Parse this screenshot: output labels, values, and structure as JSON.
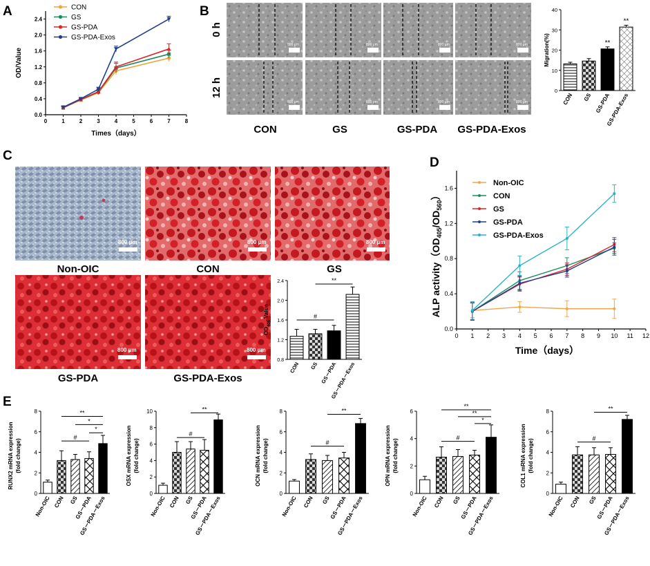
{
  "panel_letters": [
    "A",
    "B",
    "C",
    "D",
    "E"
  ],
  "colors": {
    "con_orange": "#f3a43a",
    "gs_green": "#1a8a5c",
    "gspda_red": "#d8262a",
    "exos_blue": "#1f3e8c",
    "d_noic": "#f0a64a",
    "d_con": "#1f8a5a",
    "d_gs": "#d8262a",
    "d_gspda": "#1f3e8c",
    "d_exos": "#27b3c6",
    "stain_red": "#cc1a24",
    "micro_gray": "#9a9a9a"
  },
  "panelB": {
    "time_labels": [
      "0 h",
      "12 h"
    ],
    "group_labels": [
      "CON",
      "GS",
      "GS-PDA",
      "GS-PDA-Exos"
    ],
    "scale_bar": "800 μm"
  },
  "panelC": {
    "image_labels": [
      "Non-OIC",
      "CON",
      "GS",
      "GS-PDA",
      "GS-PDA-Exos"
    ],
    "scale_bar": "800 μm"
  },
  "chart_data": [
    {
      "id": "A",
      "type": "line",
      "title": "",
      "xlabel": "Times（days）",
      "ylabel": "OD/Value",
      "xlim": [
        0,
        8
      ],
      "ylim": [
        0,
        2.6
      ],
      "xticks": [
        0,
        1,
        2,
        3,
        4,
        5,
        6,
        7,
        8
      ],
      "yticks": [
        0.0,
        0.4,
        0.8,
        1.2,
        1.6,
        2.0,
        2.4
      ],
      "ytick_labels": [
        "0.0",
        "0.4",
        "0.8",
        "1.2",
        "1.6",
        "2.0",
        "2.4"
      ],
      "legend_position": "top-left",
      "x": [
        1,
        2,
        3,
        4,
        7
      ],
      "series": [
        {
          "name": "CON",
          "color_key": "con_orange",
          "marker": "circle",
          "values": [
            0.18,
            0.37,
            0.55,
            1.1,
            1.42
          ],
          "errors": [
            0.03,
            0.03,
            0.05,
            0.1,
            0.08
          ]
        },
        {
          "name": "GS",
          "color_key": "gs_green",
          "marker": "square",
          "values": [
            0.17,
            0.38,
            0.57,
            1.17,
            1.52
          ],
          "errors": [
            0.03,
            0.03,
            0.05,
            0.12,
            0.1
          ]
        },
        {
          "name": "GS-PDA",
          "color_key": "gspda_red",
          "marker": "triangle",
          "values": [
            0.18,
            0.38,
            0.58,
            1.2,
            1.65
          ],
          "errors": [
            0.03,
            0.03,
            0.06,
            0.12,
            0.13
          ]
        },
        {
          "name": "GS-PDA-Exos",
          "color_key": "exos_blue",
          "marker": "triangle-down",
          "values": [
            0.19,
            0.4,
            0.64,
            1.65,
            2.4
          ],
          "errors": [
            0.03,
            0.03,
            0.05,
            0.07,
            0.07
          ]
        }
      ]
    },
    {
      "id": "B",
      "type": "bar",
      "ylabel": "Migration(%)",
      "ylim": [
        0,
        40
      ],
      "yticks": [
        0,
        10,
        20,
        30,
        40
      ],
      "ytick_labels": [
        "0",
        "10",
        "20",
        "30",
        "40"
      ],
      "categories": [
        "CON",
        "GS",
        "GS-PDA",
        "GS-PDA-Exos"
      ],
      "values": [
        13.2,
        14.6,
        20.6,
        31.4
      ],
      "errors": [
        0.8,
        1.2,
        1.0,
        0.9
      ],
      "fills": [
        "hlines",
        "checker",
        "solid",
        "crosshatch"
      ],
      "annotations": [
        "",
        "",
        "**",
        "**"
      ]
    },
    {
      "id": "C",
      "type": "bar",
      "ylabel_main": "OD",
      "ylabel_sub": "405",
      "ylabel_tail": "Value",
      "ylim": [
        0.8,
        2.4
      ],
      "yticks": [
        0.8,
        1.2,
        1.6,
        2.0,
        2.4
      ],
      "ytick_labels": [
        "0.8",
        "1.2",
        "1.6",
        "2.0",
        "2.4"
      ],
      "categories": [
        "CON",
        "GS",
        "GS－PDA",
        "GS－PDA－Exos"
      ],
      "values": [
        1.27,
        1.32,
        1.38,
        2.12
      ],
      "errors": [
        0.14,
        0.09,
        0.11,
        0.15
      ],
      "fills": [
        "hlines",
        "checker",
        "solid",
        "hlines"
      ],
      "brackets": [
        {
          "from": 0,
          "to": 2,
          "label": "#",
          "y": 1.6
        },
        {
          "from": 1,
          "to": 3,
          "label": "**",
          "y": 2.33
        }
      ]
    },
    {
      "id": "D",
      "type": "line",
      "xlabel": "Time（days）",
      "ylabel_main": "ALP activity（OD",
      "ylabel_sub1": "405",
      "ylabel_mid": "/OD",
      "ylabel_sub2": "560",
      "ylabel_tail": "）",
      "xlim": [
        0,
        12
      ],
      "ylim": [
        0,
        1.8
      ],
      "xticks": [
        0,
        1,
        2,
        3,
        4,
        5,
        6,
        7,
        8,
        9,
        10,
        11,
        12
      ],
      "yticks": [
        0.0,
        0.4,
        0.8,
        1.2,
        1.6
      ],
      "ytick_labels": [
        "0.0",
        "0.4",
        "0.8",
        "1.2",
        "1.6"
      ],
      "legend_position": "top-left",
      "x": [
        1,
        4,
        7,
        10
      ],
      "series": [
        {
          "name": "Non-OIC",
          "color_key": "d_noic",
          "values": [
            0.21,
            0.25,
            0.23,
            0.23
          ],
          "errors": [
            0.08,
            0.06,
            0.09,
            0.11
          ]
        },
        {
          "name": "CON",
          "color_key": "d_con",
          "values": [
            0.2,
            0.55,
            0.72,
            0.92
          ],
          "errors": [
            0.1,
            0.1,
            0.09,
            0.06
          ]
        },
        {
          "name": "GS",
          "color_key": "d_gs",
          "values": [
            0.2,
            0.51,
            0.68,
            0.96
          ],
          "errors": [
            0.1,
            0.08,
            0.07,
            0.08
          ]
        },
        {
          "name": "GS-PDA",
          "color_key": "d_gspda",
          "values": [
            0.2,
            0.52,
            0.66,
            0.93
          ],
          "errors": [
            0.1,
            0.08,
            0.07,
            0.09
          ]
        },
        {
          "name": "GS-PDA-Exos",
          "color_key": "d_exos",
          "values": [
            0.21,
            0.72,
            1.03,
            1.54
          ],
          "errors": [
            0.1,
            0.11,
            0.13,
            0.1
          ]
        }
      ]
    },
    {
      "id": "E",
      "type": "bar-group",
      "categories": [
        "Non-OIC",
        "CON",
        "GS",
        "GS－PDA",
        "GS－PDA－Exos"
      ],
      "fills": [
        "white",
        "checker",
        "diag",
        "crosshatch",
        "solid"
      ],
      "charts": [
        {
          "id": "E1",
          "ylabel": [
            "RUNX2 mRNA expression",
            "(fold change)"
          ],
          "ylim": [
            0,
            8
          ],
          "yticks": [
            0,
            2,
            4,
            6,
            8
          ],
          "ytick_labels": [
            "0",
            "2",
            "4",
            "6",
            "8"
          ],
          "values": [
            1.1,
            3.2,
            3.3,
            3.4,
            4.85
          ],
          "errors": [
            0.2,
            0.95,
            0.5,
            0.65,
            0.8
          ],
          "brackets": [
            {
              "from": 1,
              "to": 3,
              "label": "#",
              "y": 5.1
            },
            {
              "from": 1,
              "to": 4,
              "label": "**",
              "y": 7.5
            },
            {
              "from": 2,
              "to": 4,
              "label": "*",
              "y": 6.7
            },
            {
              "from": 3,
              "to": 4,
              "label": "*",
              "y": 5.9
            }
          ]
        },
        {
          "id": "E2",
          "ylabel": [
            "OSX mRNA expression",
            "(fold change)"
          ],
          "ylim": [
            0,
            10
          ],
          "yticks": [
            0,
            2,
            4,
            6,
            8,
            10
          ],
          "ytick_labels": [
            "0",
            "2",
            "4",
            "6",
            "8",
            "10"
          ],
          "values": [
            1.0,
            5.0,
            5.4,
            5.25,
            8.95
          ],
          "errors": [
            0.25,
            1.3,
            0.9,
            1.3,
            0.7
          ],
          "brackets": [
            {
              "from": 1,
              "to": 3,
              "label": "#",
              "y": 6.8
            },
            {
              "from": 2,
              "to": 4,
              "label": "**",
              "y": 9.8
            }
          ]
        },
        {
          "id": "E3",
          "ylabel": [
            "OCN mRNA expression",
            "(fold change)"
          ],
          "ylim": [
            0,
            8
          ],
          "yticks": [
            0,
            2,
            4,
            6,
            8
          ],
          "ytick_labels": [
            "0",
            "2",
            "4",
            "6",
            "8"
          ],
          "values": [
            1.2,
            3.3,
            3.2,
            3.45,
            6.8
          ],
          "errors": [
            0.15,
            0.55,
            0.5,
            0.55,
            0.5
          ],
          "brackets": [
            {
              "from": 1,
              "to": 3,
              "label": "#",
              "y": 4.6
            },
            {
              "from": 2,
              "to": 4,
              "label": "**",
              "y": 7.7
            }
          ]
        },
        {
          "id": "E4",
          "ylabel": [
            "OPN mRNA expression",
            "(fold change)"
          ],
          "ylim": [
            0,
            6
          ],
          "yticks": [
            0,
            2,
            4,
            6
          ],
          "ytick_labels": [
            "0",
            "2",
            "4",
            "6"
          ],
          "values": [
            1.0,
            2.65,
            2.7,
            2.8,
            4.1
          ],
          "errors": [
            0.25,
            0.75,
            0.5,
            0.35,
            0.9
          ],
          "brackets": [
            {
              "from": 1,
              "to": 3,
              "label": "#",
              "y": 3.8
            },
            {
              "from": 1,
              "to": 4,
              "label": "**",
              "y": 6.1
            },
            {
              "from": 2,
              "to": 4,
              "label": "**",
              "y": 5.6
            },
            {
              "from": 3,
              "to": 4,
              "label": "*",
              "y": 5.1
            }
          ]
        },
        {
          "id": "E5",
          "ylabel": [
            "COL1 mRNA expression",
            "(fold change)"
          ],
          "ylim": [
            0,
            8
          ],
          "yticks": [
            0,
            2,
            4,
            6,
            8
          ],
          "ytick_labels": [
            "0",
            "2",
            "4",
            "6",
            "8"
          ],
          "values": [
            0.9,
            3.75,
            3.75,
            3.8,
            7.2
          ],
          "errors": [
            0.2,
            0.8,
            0.7,
            0.65,
            0.4
          ],
          "brackets": [
            {
              "from": 1,
              "to": 3,
              "label": "#",
              "y": 5.0
            },
            {
              "from": 2,
              "to": 4,
              "label": "**",
              "y": 7.9
            }
          ]
        }
      ]
    }
  ]
}
